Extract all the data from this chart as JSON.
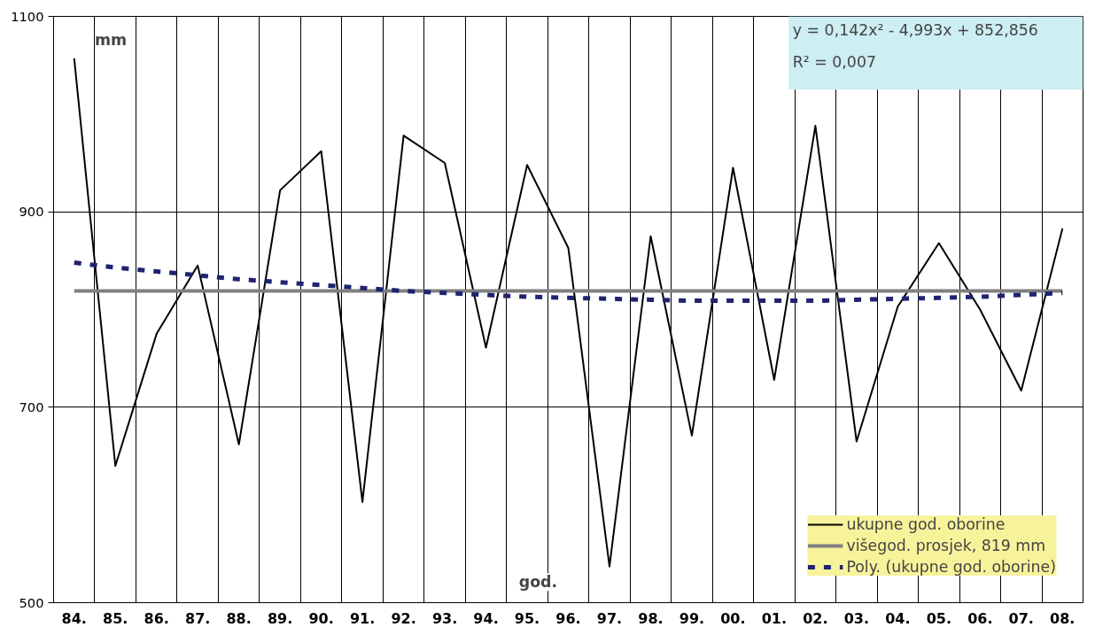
{
  "chart_data": {
    "type": "line",
    "categories": [
      "84.",
      "85.",
      "86.",
      "87.",
      "88.",
      "89.",
      "90.",
      "91.",
      "92.",
      "93.",
      "94.",
      "95.",
      "96.",
      "97.",
      "98.",
      "99.",
      "00.",
      "01.",
      "02.",
      "03.",
      "04.",
      "05.",
      "06.",
      "07.",
      "08."
    ],
    "series": [
      {
        "name": "ukupne god. oborine",
        "color": "#000000",
        "line_style": "solid",
        "values": [
          1057,
          640,
          775,
          845,
          662,
          922,
          962,
          603,
          978,
          950,
          761,
          948,
          863,
          537,
          875,
          671,
          945,
          728,
          988,
          665,
          803,
          868,
          800,
          717,
          883
        ]
      },
      {
        "name": "višegod. prosjek, 819 mm",
        "color": "#808080",
        "line_style": "solid",
        "values": [
          819,
          819,
          819,
          819,
          819,
          819,
          819,
          819,
          819,
          819,
          819,
          819,
          819,
          819,
          819,
          819,
          819,
          819,
          819,
          819,
          819,
          819,
          819,
          819,
          819
        ]
      },
      {
        "name": "Poly. (ukupne god. oborine)",
        "color": "#1f2370",
        "line_style": "dashed",
        "values": [
          848,
          843,
          839,
          835,
          831,
          828,
          825,
          822,
          819,
          817,
          815,
          813,
          812,
          811,
          810,
          809,
          809,
          809,
          809,
          810,
          811,
          812,
          813,
          815,
          817
        ]
      }
    ],
    "ylim": [
      500,
      1100
    ],
    "yticks": [
      500,
      700,
      900,
      1100
    ],
    "grid": true,
    "legend": "bottom right",
    "marker": "none",
    "annotations": [
      "mm",
      "god.",
      "y = 0,142x² - 4,993x + 852,856",
      "R² = 0,007"
    ]
  }
}
